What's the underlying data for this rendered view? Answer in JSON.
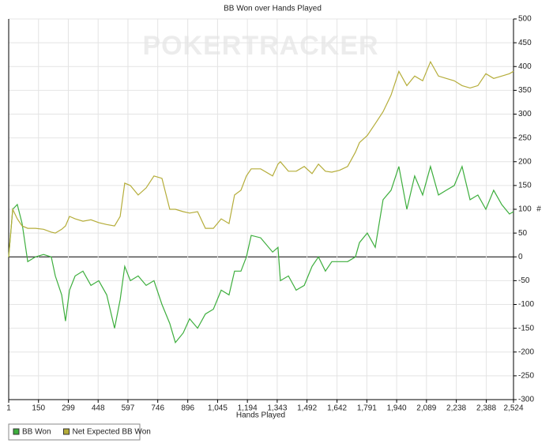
{
  "chart_data": {
    "type": "line",
    "title": "BB Won over Hands Played",
    "watermark": "POKERTRACKER",
    "xlabel": "Hands Played",
    "ylabel": "#",
    "x": [
      1,
      21,
      44,
      68,
      96,
      135,
      175,
      214,
      234,
      266,
      285,
      305,
      333,
      372,
      412,
      451,
      491,
      530,
      558,
      581,
      609,
      648,
      688,
      727,
      767,
      806,
      834,
      873,
      905,
      945,
      984,
      1024,
      1063,
      1102,
      1130,
      1162,
      1189,
      1213,
      1260,
      1320,
      1347,
      1359,
      1399,
      1438,
      1478,
      1517,
      1549,
      1584,
      1616,
      1655,
      1695,
      1734,
      1754,
      1793,
      1833,
      1872,
      1912,
      1951,
      1991,
      2030,
      2070,
      2109,
      2149,
      2188,
      2228,
      2267,
      2307,
      2346,
      2386,
      2425,
      2465,
      2504,
      2524
    ],
    "series": [
      {
        "name": "BB Won",
        "color": "#3dae3d",
        "values": [
          0,
          100,
          110,
          70,
          -10,
          0,
          5,
          0,
          -40,
          -80,
          -135,
          -70,
          -40,
          -30,
          -60,
          -50,
          -80,
          -150,
          -90,
          -20,
          -50,
          -40,
          -60,
          -50,
          -100,
          -140,
          -180,
          -160,
          -130,
          -150,
          -120,
          -110,
          -70,
          -80,
          -30,
          -30,
          0,
          45,
          40,
          10,
          20,
          -50,
          -40,
          -70,
          -60,
          -20,
          0,
          -30,
          -10,
          -10,
          -10,
          0,
          30,
          50,
          20,
          120,
          140,
          190,
          100,
          170,
          130,
          190,
          130,
          140,
          150,
          190,
          120,
          130,
          100,
          140,
          110,
          90,
          95
        ]
      },
      {
        "name": "Net Expected BB Won",
        "color": "#b5ad3a",
        "values": [
          0,
          100,
          80,
          65,
          60,
          60,
          58,
          52,
          50,
          58,
          65,
          85,
          80,
          75,
          78,
          72,
          68,
          65,
          85,
          155,
          150,
          130,
          145,
          170,
          165,
          100,
          100,
          95,
          92,
          95,
          60,
          60,
          80,
          70,
          130,
          140,
          170,
          185,
          185,
          170,
          195,
          200,
          180,
          180,
          190,
          175,
          195,
          180,
          178,
          182,
          190,
          220,
          240,
          255,
          280,
          305,
          340,
          390,
          360,
          380,
          370,
          410,
          380,
          375,
          370,
          360,
          355,
          360,
          385,
          375,
          380,
          385,
          390
        ]
      }
    ],
    "xlim": [
      1,
      2524
    ],
    "xticks": [
      1,
      150,
      299,
      448,
      597,
      746,
      896,
      {
        "value": 1045,
        "label": "1,045"
      },
      {
        "value": 1194,
        "label": "1,194"
      },
      {
        "value": 1343,
        "label": "1,343"
      },
      {
        "value": 1492,
        "label": "1,492"
      },
      {
        "value": 1642,
        "label": "1,642"
      },
      {
        "value": 1791,
        "label": "1,791"
      },
      {
        "value": 1940,
        "label": "1,940"
      },
      {
        "value": 2089,
        "label": "2,089"
      },
      {
        "value": 2238,
        "label": "2,238"
      },
      {
        "value": 2388,
        "label": "2,388"
      },
      {
        "value": 2524,
        "label": "2,524"
      }
    ],
    "ylim": [
      -300,
      500
    ],
    "yticks": [
      -300,
      -250,
      -200,
      -150,
      -100,
      -50,
      0,
      50,
      100,
      150,
      200,
      250,
      300,
      350,
      400,
      450,
      500
    ],
    "grid": true,
    "legend": "bottom-left"
  }
}
